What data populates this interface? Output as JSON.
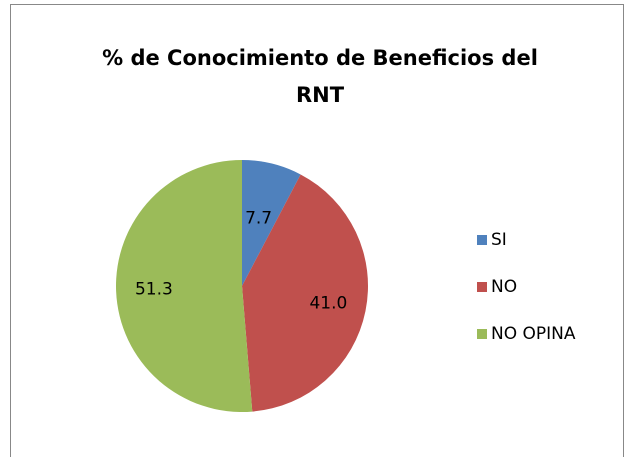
{
  "chart_data": {
    "type": "pie",
    "title": "% de Conocimiento de Beneficios del RNT",
    "categories": [
      "SI",
      "NO",
      "NO OPINA"
    ],
    "values": [
      7.7,
      41.0,
      51.3
    ],
    "value_labels": [
      "7.7",
      "41.0",
      "51.3"
    ],
    "colors": [
      "#4f81bd",
      "#c0504d",
      "#9bbb59"
    ],
    "legend": "right"
  }
}
